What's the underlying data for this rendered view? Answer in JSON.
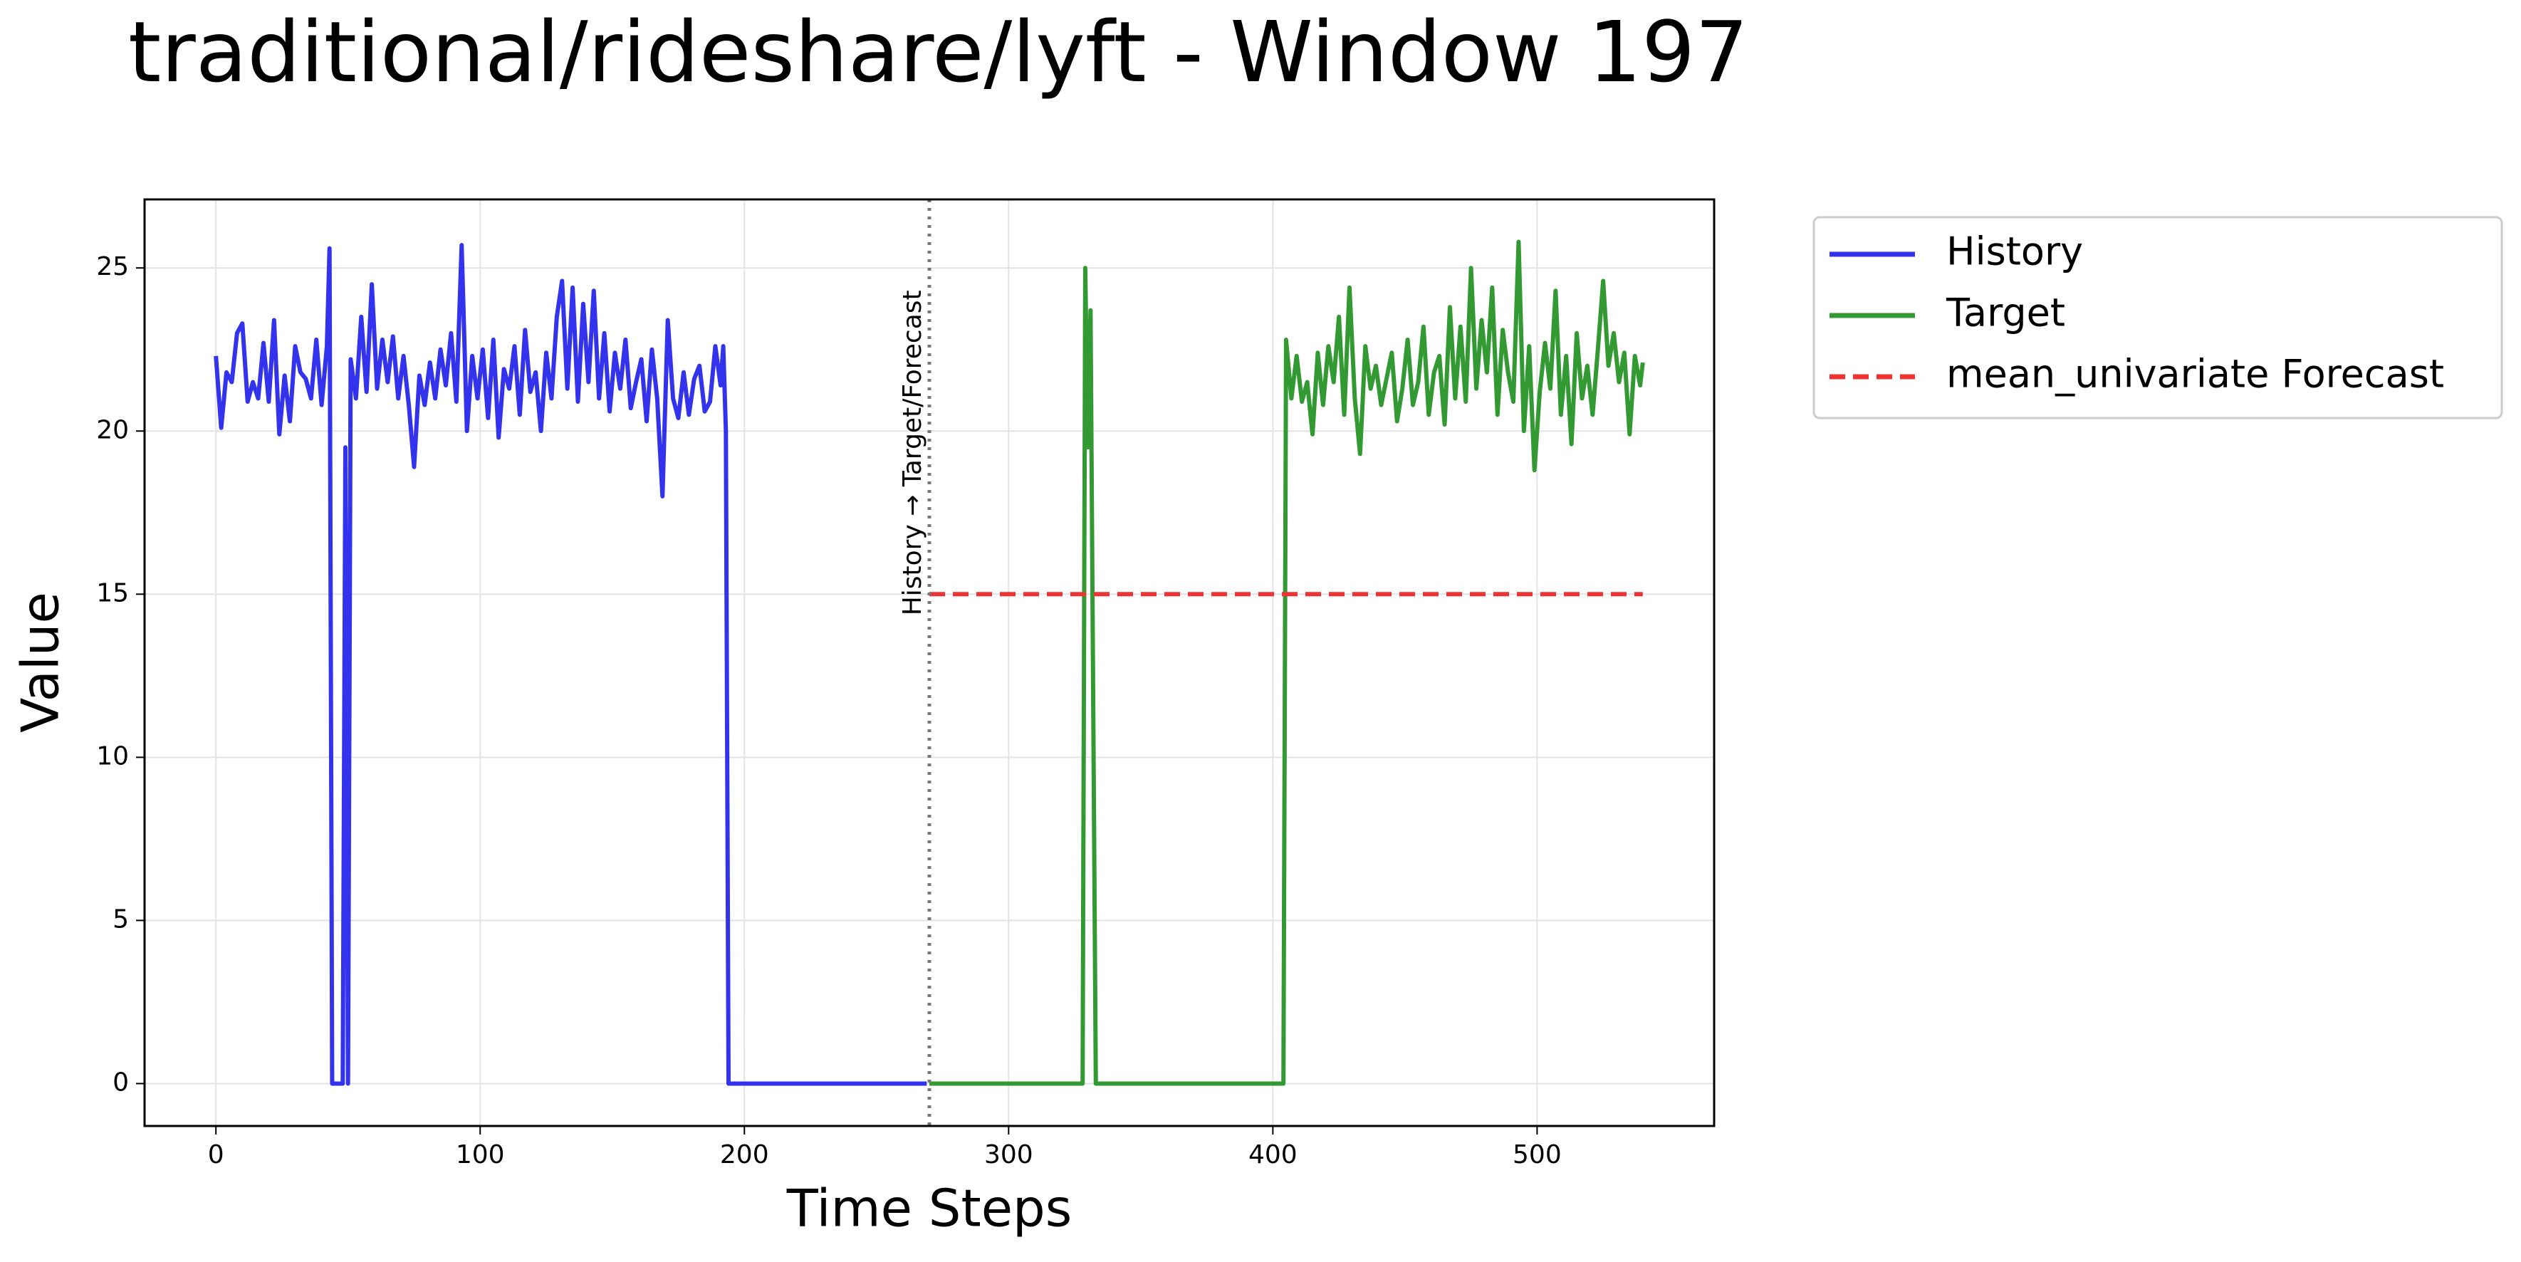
{
  "chart_data": {
    "type": "line",
    "title": "traditional/rideshare/lyft - Window 197",
    "xlabel": "Time Steps",
    "ylabel": "Value",
    "xlim": [
      -27,
      567
    ],
    "ylim": [
      -1.3,
      27.1
    ],
    "xticks": [
      0,
      100,
      200,
      300,
      400,
      500
    ],
    "yticks": [
      0,
      5,
      10,
      15,
      20,
      25
    ],
    "grid": true,
    "legend": "outside-upper-right",
    "vline": {
      "x": 270,
      "label": "History → Target/Forecast",
      "color": "#777777"
    },
    "series": [
      {
        "name": "History",
        "color": "#3333ee",
        "linestyle": "solid",
        "x": [
          0,
          2,
          4,
          6,
          8,
          10,
          12,
          14,
          16,
          18,
          20,
          22,
          24,
          26,
          28,
          30,
          32,
          34,
          36,
          38,
          40,
          42,
          43,
          44,
          48,
          49,
          50,
          51,
          53,
          55,
          57,
          59,
          61,
          63,
          65,
          67,
          69,
          71,
          73,
          75,
          77,
          79,
          81,
          83,
          85,
          87,
          89,
          91,
          93,
          95,
          97,
          99,
          101,
          103,
          105,
          107,
          109,
          111,
          113,
          115,
          117,
          119,
          121,
          123,
          125,
          127,
          129,
          131,
          133,
          135,
          137,
          139,
          141,
          143,
          145,
          147,
          149,
          151,
          153,
          155,
          157,
          159,
          161,
          163,
          165,
          167,
          169,
          171,
          173,
          175,
          177,
          179,
          181,
          183,
          185,
          187,
          189,
          191,
          192,
          193,
          194,
          269
        ],
        "values": [
          22.3,
          20.1,
          21.8,
          21.5,
          23.0,
          23.3,
          20.9,
          21.5,
          21.0,
          22.7,
          20.9,
          23.4,
          19.9,
          21.7,
          20.3,
          22.6,
          21.8,
          21.6,
          21.0,
          22.8,
          20.8,
          22.6,
          25.6,
          0,
          0,
          19.5,
          0,
          22.2,
          21.0,
          23.5,
          21.2,
          24.5,
          21.3,
          22.8,
          21.5,
          22.9,
          21.0,
          22.3,
          20.8,
          18.9,
          21.7,
          20.8,
          22.1,
          21.0,
          22.5,
          21.4,
          23.0,
          20.9,
          25.7,
          20.0,
          22.3,
          21.0,
          22.5,
          20.4,
          22.8,
          19.8,
          21.9,
          21.3,
          22.6,
          20.5,
          23.1,
          21.2,
          21.8,
          20.0,
          22.4,
          21.0,
          23.5,
          24.6,
          21.3,
          24.4,
          20.9,
          23.9,
          21.5,
          24.3,
          21.0,
          23.0,
          20.6,
          22.4,
          21.3,
          22.8,
          20.7,
          21.5,
          22.2,
          20.3,
          22.5,
          21.0,
          18.0,
          23.4,
          21.0,
          20.4,
          21.8,
          20.5,
          21.6,
          22.0,
          20.6,
          20.9,
          22.6,
          21.4,
          22.6,
          20.0,
          0,
          0
        ]
      },
      {
        "name": "Target",
        "color": "#339933",
        "linestyle": "solid",
        "x": [
          270,
          328,
          329,
          330,
          331,
          333,
          404,
          405,
          407,
          409,
          411,
          413,
          415,
          417,
          419,
          421,
          423,
          425,
          427,
          429,
          431,
          433,
          435,
          437,
          439,
          441,
          443,
          445,
          447,
          449,
          451,
          453,
          455,
          457,
          459,
          461,
          463,
          465,
          467,
          469,
          471,
          473,
          475,
          477,
          479,
          481,
          483,
          485,
          487,
          489,
          491,
          493,
          495,
          497,
          499,
          501,
          503,
          505,
          507,
          509,
          511,
          513,
          515,
          517,
          519,
          521,
          523,
          525,
          527,
          529,
          531,
          533,
          535,
          537,
          539,
          540
        ],
        "values": [
          0,
          0,
          25.0,
          19.5,
          23.7,
          0,
          0,
          22.8,
          21.0,
          22.3,
          20.9,
          21.5,
          19.9,
          22.4,
          20.8,
          22.6,
          21.5,
          23.5,
          20.5,
          24.4,
          21.0,
          19.3,
          22.6,
          21.3,
          22.0,
          20.8,
          21.6,
          22.4,
          20.3,
          21.3,
          22.8,
          20.8,
          21.5,
          23.2,
          20.5,
          21.8,
          22.3,
          20.2,
          23.8,
          21.0,
          23.2,
          20.9,
          25.0,
          21.3,
          23.4,
          21.8,
          24.4,
          20.5,
          23.1,
          21.8,
          20.9,
          25.8,
          20.0,
          22.6,
          18.8,
          21.2,
          22.7,
          21.3,
          24.3,
          20.5,
          22.3,
          19.6,
          23.0,
          21.0,
          22.0,
          20.5,
          22.5,
          24.6,
          22.0,
          23.0,
          21.5,
          22.4,
          19.9,
          22.3,
          21.4,
          22.1
        ]
      },
      {
        "name": "mean_univariate Forecast",
        "color": "#ee3333",
        "linestyle": "dashed",
        "x": [
          270,
          540
        ],
        "values": [
          15,
          15
        ]
      }
    ]
  }
}
